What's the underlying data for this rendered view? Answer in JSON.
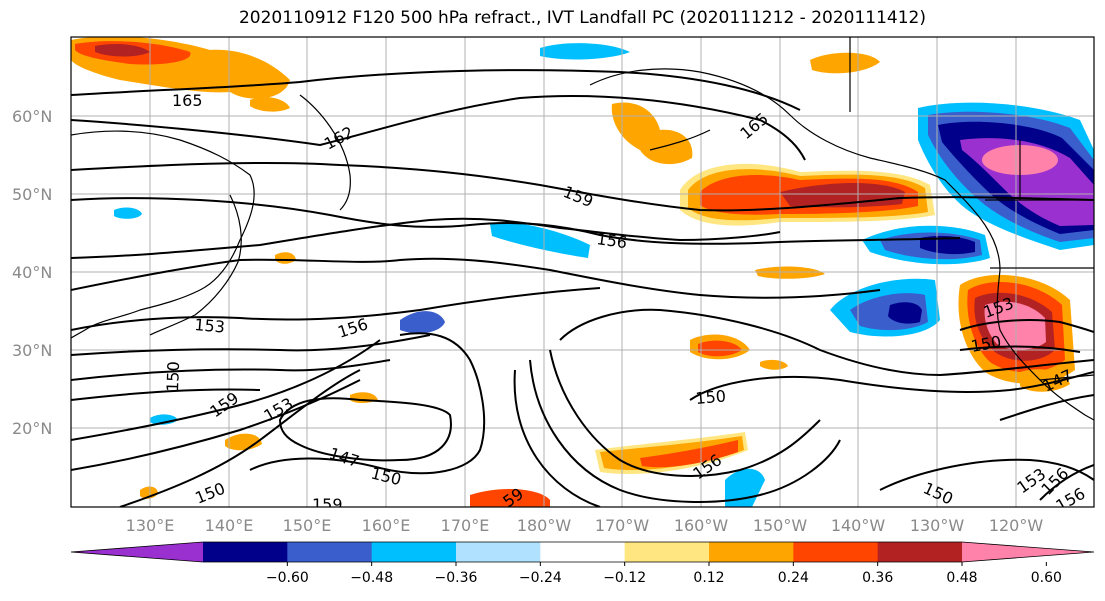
{
  "title": "2020110912 F120 500 hPa refract., IVT Landfall PC (2020111212 - 2020111412)",
  "lat_labels": [
    "60°N",
    "50°N",
    "40°N",
    "30°N",
    "20°N"
  ],
  "lon_labels": [
    "130°E",
    "140°E",
    "150°E",
    "160°E",
    "170°E",
    "180°W",
    "170°W",
    "160°W",
    "150°W",
    "140°W",
    "130°W",
    "120°W"
  ],
  "contour_labels": [
    "165",
    "162",
    "159",
    "156",
    "153",
    "156",
    "150",
    "159",
    "153",
    "147",
    "150",
    "150",
    "159",
    "59",
    "150",
    "156",
    "153",
    "150",
    "147",
    "150",
    "153",
    "156",
    "156",
    "165"
  ],
  "colorbar": {
    "ticks": [
      "−0.60",
      "−0.48",
      "−0.36",
      "−0.24",
      "−0.12",
      "0.12",
      "0.24",
      "0.36",
      "0.48",
      "0.60"
    ],
    "colors": [
      "#9b30d0",
      "#00008b",
      "#3a5fcd",
      "#00bfff",
      "#b0e2ff",
      "#ffffff",
      "#ffe680",
      "#ffa500",
      "#ff4500",
      "#b22222",
      "#ff82ab"
    ]
  },
  "colors": {
    "purple": "#9b30d0",
    "navy": "#00008b",
    "royal": "#3a5fcd",
    "sky": "#00bfff",
    "pale_blue": "#b0e2ff",
    "pale_yellow": "#ffe680",
    "orange": "#ffa500",
    "red_orange": "#ff4500",
    "dark_red": "#b22222",
    "pink": "#ff82ab"
  }
}
